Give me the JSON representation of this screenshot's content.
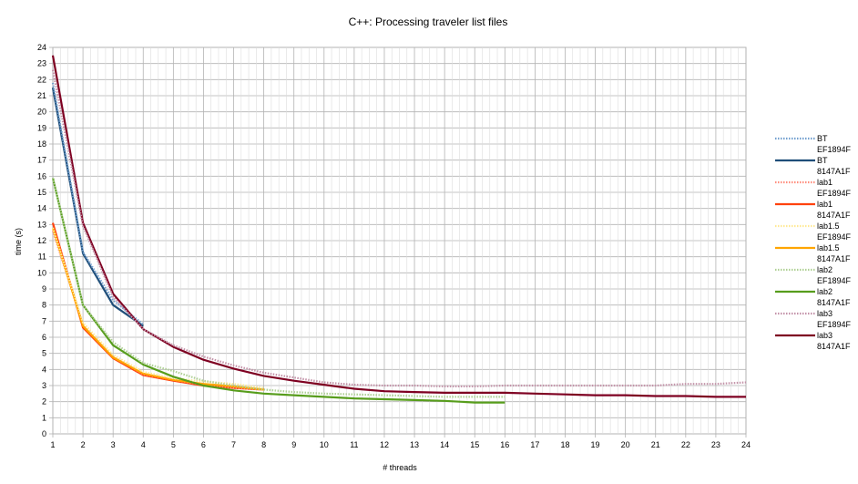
{
  "chart_data": {
    "type": "line",
    "title": "C++: Processing traveler list files",
    "xlabel": "# threads",
    "ylabel": "time (s)",
    "xlim": [
      1,
      24
    ],
    "ylim": [
      0,
      24
    ],
    "x_ticks": [
      1,
      2,
      3,
      4,
      5,
      6,
      7,
      8,
      9,
      10,
      11,
      12,
      13,
      14,
      15,
      16,
      17,
      18,
      19,
      20,
      21,
      22,
      23,
      24
    ],
    "y_ticks": [
      0,
      1,
      2,
      3,
      4,
      5,
      6,
      7,
      8,
      9,
      10,
      11,
      12,
      13,
      14,
      15,
      16,
      17,
      18,
      19,
      20,
      21,
      22,
      23,
      24
    ],
    "grid": true,
    "legend_position": "right",
    "series": [
      {
        "name": [
          "BT",
          "EF1894F"
        ],
        "color": "#729fcf",
        "style": "dotted",
        "x": [
          1,
          2,
          3,
          4
        ],
        "values": [
          21.8,
          11.3,
          8.3,
          6.8
        ]
      },
      {
        "name": [
          "BT",
          "8147A1F"
        ],
        "color": "#1f4e79",
        "style": "solid",
        "x": [
          1,
          2,
          3,
          4
        ],
        "values": [
          21.5,
          11.2,
          8.0,
          6.7
        ]
      },
      {
        "name": [
          "lab1",
          "EF1894F"
        ],
        "color": "#ff8e7e",
        "style": "dotted",
        "x": [
          1,
          2,
          3,
          4,
          5,
          6,
          7,
          8
        ],
        "values": [
          12.6,
          6.8,
          4.8,
          3.7,
          3.35,
          3.05,
          2.85,
          2.75
        ]
      },
      {
        "name": [
          "lab1",
          "8147A1F"
        ],
        "color": "#ff420e",
        "style": "solid",
        "x": [
          1,
          2,
          3,
          4,
          5,
          6,
          7,
          8
        ],
        "values": [
          13.1,
          6.6,
          4.7,
          3.65,
          3.3,
          3.0,
          2.85,
          2.75
        ]
      },
      {
        "name": [
          "lab1.5",
          "EF1894F"
        ],
        "color": "#ffe994",
        "style": "dotted",
        "x": [
          1,
          2,
          3,
          4,
          5,
          6,
          7,
          8
        ],
        "values": [
          12.8,
          6.9,
          4.9,
          3.85,
          3.45,
          3.25,
          3.1,
          2.85
        ]
      },
      {
        "name": [
          "lab1.5",
          "8147A1F"
        ],
        "color": "#ffa500",
        "style": "solid",
        "x": [
          1,
          2,
          3,
          4,
          5,
          6,
          7,
          8
        ],
        "values": [
          12.8,
          6.7,
          4.75,
          3.75,
          3.35,
          3.1,
          2.95,
          2.75
        ]
      },
      {
        "name": [
          "lab2",
          "EF1894F"
        ],
        "color": "#afd095",
        "style": "dotted",
        "x": [
          1,
          2,
          3,
          4,
          5,
          6,
          7,
          8,
          9,
          10,
          11,
          12,
          13,
          14,
          15,
          16
        ],
        "values": [
          15.9,
          8.0,
          5.7,
          4.4,
          3.9,
          3.3,
          3.0,
          2.75,
          2.6,
          2.5,
          2.45,
          2.4,
          2.35,
          2.3,
          2.3,
          2.3
        ]
      },
      {
        "name": [
          "lab2",
          "8147A1F"
        ],
        "color": "#579d1c",
        "style": "solid",
        "x": [
          1,
          2,
          3,
          4,
          5,
          6,
          7,
          8,
          9,
          10,
          11,
          12,
          13,
          14,
          15,
          16
        ],
        "values": [
          15.9,
          8.0,
          5.5,
          4.3,
          3.55,
          3.0,
          2.7,
          2.5,
          2.4,
          2.3,
          2.2,
          2.15,
          2.1,
          2.05,
          1.95,
          1.95
        ]
      },
      {
        "name": [
          "lab3",
          "EF1894F"
        ],
        "color": "#c392a8",
        "style": "dotted",
        "x": [
          1,
          2,
          3,
          4,
          5,
          6,
          7,
          8,
          9,
          10,
          11,
          12,
          13,
          14,
          15,
          16,
          17,
          18,
          19,
          20,
          21,
          22,
          23,
          24
        ],
        "values": [
          22.6,
          12.9,
          8.5,
          6.5,
          5.5,
          4.8,
          4.25,
          3.8,
          3.5,
          3.2,
          3.05,
          3.0,
          3.0,
          2.95,
          2.95,
          3.0,
          3.0,
          3.0,
          3.0,
          3.0,
          3.0,
          3.1,
          3.1,
          3.2
        ]
      },
      {
        "name": [
          "lab3",
          "8147A1F"
        ],
        "color": "#7e0021",
        "style": "solid",
        "x": [
          1,
          2,
          3,
          4,
          5,
          6,
          7,
          8,
          9,
          10,
          11,
          12,
          13,
          14,
          15,
          16,
          17,
          18,
          19,
          20,
          21,
          22,
          23,
          24
        ],
        "values": [
          23.5,
          13.1,
          8.7,
          6.5,
          5.4,
          4.6,
          4.05,
          3.6,
          3.3,
          3.05,
          2.8,
          2.65,
          2.6,
          2.55,
          2.55,
          2.55,
          2.5,
          2.45,
          2.4,
          2.4,
          2.35,
          2.35,
          2.3,
          2.3
        ]
      }
    ]
  }
}
